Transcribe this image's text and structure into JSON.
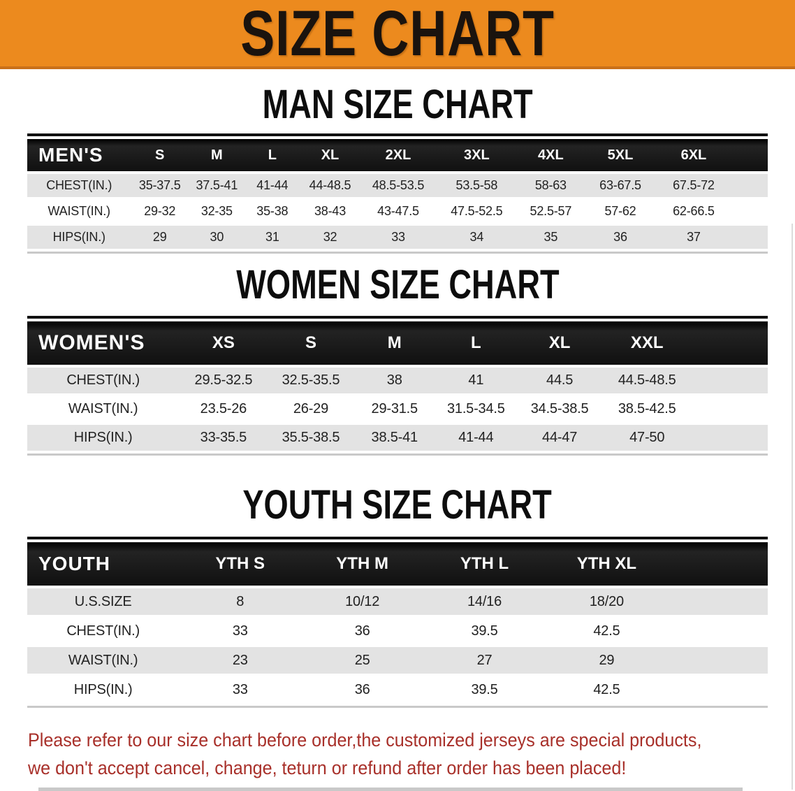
{
  "banner": {
    "title": "SIZE CHART"
  },
  "colors": {
    "banner_orange": "#EC8A1E",
    "banner_edge": "#C9701A",
    "header_black": "#131313",
    "stripe_gray": "#E3E3E3",
    "text_dark": "#222222",
    "notice_red": "#A8302A"
  },
  "men": {
    "heading": "MAN SIZE CHART",
    "table": {
      "label": "MEN'S",
      "columns": [
        "S",
        "M",
        "L",
        "XL",
        "2XL",
        "3XL",
        "4XL",
        "5XL",
        "6XL"
      ],
      "rows": [
        {
          "label": "CHEST(IN.)",
          "values": [
            "35-37.5",
            "37.5-41",
            "41-44",
            "44-48.5",
            "48.5-53.5",
            "53.5-58",
            "58-63",
            "63-67.5",
            "67.5-72"
          ]
        },
        {
          "label": "WAIST(IN.)",
          "values": [
            "29-32",
            "32-35",
            "35-38",
            "38-43",
            "43-47.5",
            "47.5-52.5",
            "52.5-57",
            "57-62",
            "62-66.5"
          ]
        },
        {
          "label": "HIPS(IN.)",
          "values": [
            "29",
            "30",
            "31",
            "32",
            "33",
            "34",
            "35",
            "36",
            "37"
          ]
        }
      ]
    }
  },
  "women": {
    "heading": "WOMEN SIZE CHART",
    "table": {
      "label": "WOMEN'S",
      "columns": [
        "XS",
        "S",
        "M",
        "L",
        "XL",
        "XXL"
      ],
      "rows": [
        {
          "label": "CHEST(IN.)",
          "values": [
            "29.5-32.5",
            "32.5-35.5",
            "38",
            "41",
            "44.5",
            "44.5-48.5"
          ]
        },
        {
          "label": "WAIST(IN.)",
          "values": [
            "23.5-26",
            "26-29",
            "29-31.5",
            "31.5-34.5",
            "34.5-38.5",
            "38.5-42.5"
          ]
        },
        {
          "label": "HIPS(IN.)",
          "values": [
            "33-35.5",
            "35.5-38.5",
            "38.5-41",
            "41-44",
            "44-47",
            "47-50"
          ]
        }
      ]
    }
  },
  "youth": {
    "heading": "YOUTH SIZE CHART",
    "table": {
      "label": "YOUTH",
      "columns": [
        "YTH S",
        "YTH M",
        "YTH L",
        "YTH XL"
      ],
      "rows": [
        {
          "label": "U.S.SIZE",
          "values": [
            "8",
            "10/12",
            "14/16",
            "18/20"
          ]
        },
        {
          "label": "CHEST(IN.)",
          "values": [
            "33",
            "36",
            "39.5",
            "42.5"
          ]
        },
        {
          "label": "WAIST(IN.)",
          "values": [
            "23",
            "25",
            "27",
            "29"
          ]
        },
        {
          "label": "HIPS(IN.)",
          "values": [
            "33",
            "36",
            "39.5",
            "42.5"
          ]
        }
      ]
    }
  },
  "notice": {
    "line1": "Please refer to our size chart before order,the customized jerseys are special products,",
    "line2": "we don't accept cancel, change, teturn or refund after order has been placed!"
  }
}
